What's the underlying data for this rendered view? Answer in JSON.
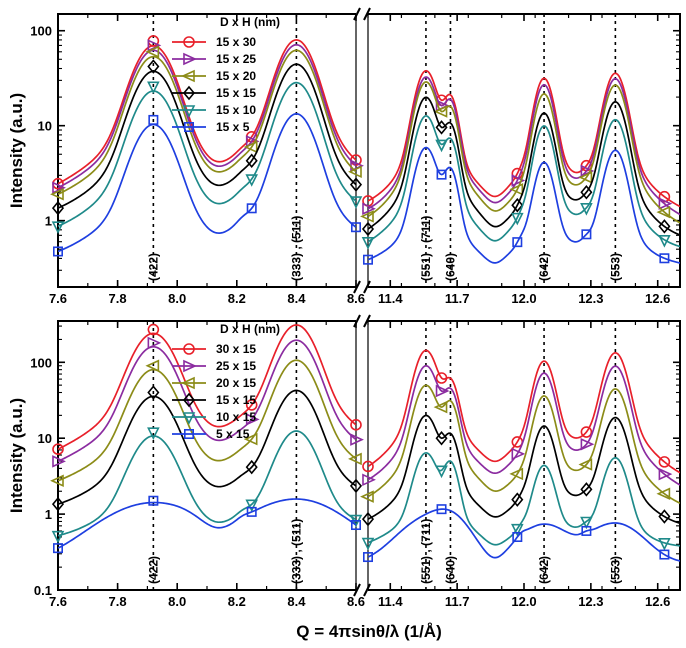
{
  "chart_data": {
    "type": "line",
    "ylabel": "Intensity (a.u.)",
    "xlabel": "Q = 4πsinθ/λ (1/Å)",
    "yscale": "log",
    "x_segments": [
      {
        "range": [
          7.6,
          8.6
        ],
        "ticks": [
          "7.6",
          "7.8",
          "8.0",
          "8.2",
          "8.4",
          "8.6"
        ]
      },
      {
        "range": [
          11.3,
          12.7
        ],
        "ticks": [
          "11.4",
          "11.7",
          "12.0",
          "12.3",
          "12.6"
        ]
      }
    ],
    "peaks": [
      {
        "q": 7.92,
        "label": "(422)"
      },
      {
        "q": 8.4,
        "label": "(333) , (511)"
      },
      {
        "q": 11.56,
        "label": "(551) , (711)"
      },
      {
        "q": 11.67,
        "label": "(640)"
      },
      {
        "q": 12.09,
        "label": "(642)"
      },
      {
        "q": 12.41,
        "label": "(553)"
      }
    ],
    "panels": [
      {
        "name": "top",
        "ylim": [
          0.2,
          150
        ],
        "yticks": [
          "1",
          "10",
          "100"
        ],
        "legend_title": "D x H (nm)",
        "series": [
          {
            "name": "15 x 30",
            "color": "#e8202a",
            "marker": "circle",
            "base": 0.72,
            "peaks": [
              78,
              90,
              42,
              20,
              35,
              40
            ]
          },
          {
            "name": "15 x 25",
            "color": "#8b2ca0",
            "marker": "triangle-right",
            "base": 0.62,
            "peaks": [
              70,
              80,
              36,
              18,
              30,
              35
            ]
          },
          {
            "name": "15 x 20",
            "color": "#8c8c18",
            "marker": "triangle-left",
            "base": 0.52,
            "peaks": [
              60,
              70,
              32,
              15,
              24,
              30
            ]
          },
          {
            "name": "15 x 15",
            "color": "#000000",
            "marker": "diamond",
            "base": 0.42,
            "peaks": [
              42,
              50,
              22,
              10,
              15,
              20
            ]
          },
          {
            "name": "15 x 10",
            "color": "#1f8a8a",
            "marker": "triangle-down",
            "base": 0.32,
            "peaks": [
              26,
              32,
              14,
              7,
              11,
              13
            ]
          },
          {
            "name": "15 x 5",
            "color": "#1e3fe0",
            "marker": "square",
            "base": 0.24,
            "peaks": [
              11.5,
              15,
              6.5,
              3.5,
              4.5,
              6.2
            ]
          }
        ]
      },
      {
        "name": "bottom",
        "ylim": [
          0.1,
          350
        ],
        "yticks": [
          "0.1",
          "1",
          "10",
          "100"
        ],
        "legend_title": "D x H (nm)",
        "series": [
          {
            "name": "30 x 15",
            "color": "#e8202a",
            "marker": "circle",
            "base": 1.05,
            "peaks": [
              270,
              350,
              160,
              55,
              115,
              150
            ]
          },
          {
            "name": "25 x 15",
            "color": "#8b2ca0",
            "marker": "triangle-right",
            "base": 0.85,
            "peaks": [
              180,
              220,
              100,
              42,
              80,
              100
            ]
          },
          {
            "name": "20 x 15",
            "color": "#8c8c18",
            "marker": "triangle-left",
            "base": 0.65,
            "peaks": [
              90,
              120,
              55,
              30,
              40,
              50
            ]
          },
          {
            "name": "15 x 15",
            "color": "#000000",
            "marker": "diamond",
            "base": 0.46,
            "peaks": [
              40,
              48,
              22,
              11,
              16,
              21
            ]
          },
          {
            "name": "10 x 15",
            "color": "#1f8a8a",
            "marker": "triangle-down",
            "base": 0.28,
            "peaks": [
              12,
              14,
              7,
              5,
              4.8,
              6.2
            ]
          },
          {
            "name": " 5 x 15",
            "color": "#1e3fe0",
            "marker": "square",
            "base": 0.16,
            "peaks": [
              1.5,
              1.7,
              0.85,
              0.8,
              0.72,
              0.82
            ]
          }
        ]
      }
    ]
  }
}
